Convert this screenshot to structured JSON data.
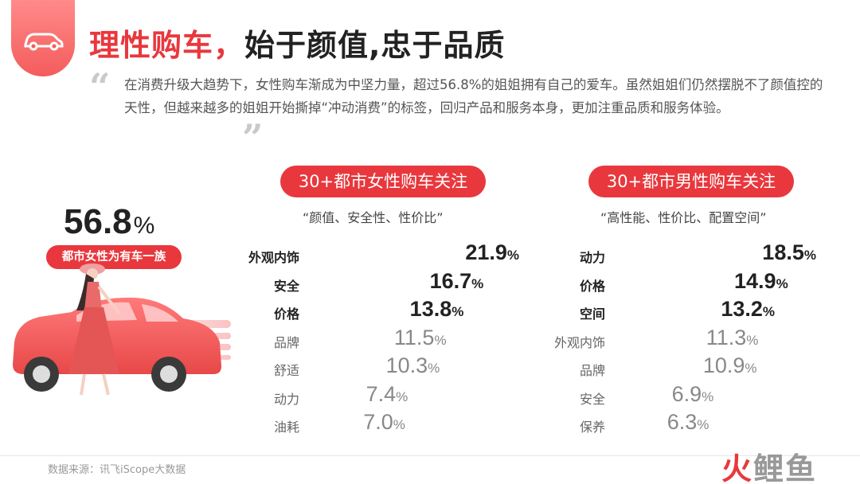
{
  "header": {
    "title_part1": "理性购车，",
    "title_part2": "始于颜值,忠于品质",
    "intro": "在消费升级大趋势下，女性购车渐成为中坚力量，超过56.8%的姐姐拥有自己的爱车。虽然姐姐们仍然摆脱不了颜值控的天性，但越来越多的姐姐开始撕掉“冲动消费”的标签，回归产品和服务本身，更加注重品质和服务体验。",
    "quote_open": "“",
    "quote_close": "”"
  },
  "stat": {
    "value": "56.8",
    "unit": "%",
    "label": "都市女性为有车一族"
  },
  "colors": {
    "accent": "#e8383d",
    "gray_bar": "#cfcfcf"
  },
  "footer": {
    "source": "数据来源：讯飞iScope大数据",
    "brand_a": "火",
    "brand_b": "鲤鱼"
  },
  "chart_data": [
    {
      "type": "bar",
      "orientation": "horizontal",
      "title": "30+都市女性购车关注",
      "subtitle": "“颜值、安全性、性价比”",
      "categories": [
        "外观内饰",
        "安全",
        "价格",
        "品牌",
        "舒适",
        "动力",
        "油耗"
      ],
      "values": [
        21.9,
        16.7,
        13.8,
        11.5,
        10.3,
        7.4,
        7.0
      ],
      "value_labels": [
        "21.9",
        "16.7",
        "13.8",
        "11.5",
        "10.3",
        "7.4",
        "7.0"
      ],
      "unit": "%",
      "highlighted_top": 3
    },
    {
      "type": "bar",
      "orientation": "horizontal",
      "title": "30+都市男性购车关注",
      "subtitle": "“高性能、性价比、配置空间”",
      "categories": [
        "动力",
        "价格",
        "空间",
        "外观内饰",
        "品牌",
        "安全",
        "保养"
      ],
      "values": [
        18.5,
        14.9,
        13.2,
        11.3,
        10.9,
        6.9,
        6.3
      ],
      "value_labels": [
        "18.5",
        "14.9",
        "13.2",
        "11.3",
        "10.9",
        "6.9",
        "6.3"
      ],
      "unit": "%",
      "highlighted_top": 3
    }
  ]
}
